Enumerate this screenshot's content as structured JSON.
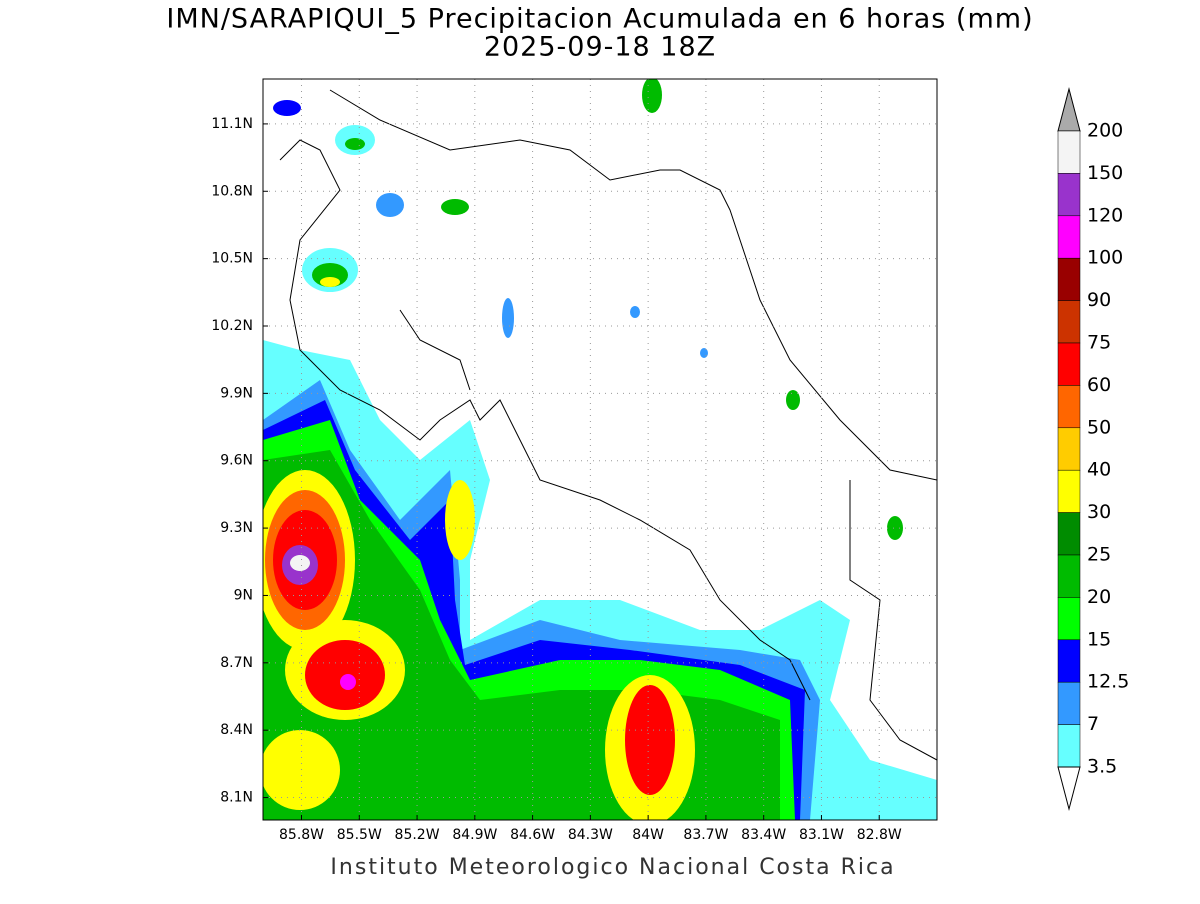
{
  "title": "IMN/SARAPIQUI_5 Precipitacion Acumulada en 6 horas (mm)",
  "subtitle": "2025-09-18 18Z",
  "footer": "Instituto Meteorologico Nacional Costa Rica",
  "map": {
    "lon_range": [
      -86,
      -82.5
    ],
    "lat_range": [
      8,
      11.3
    ],
    "lat_ticks": [
      {
        "value": 11.1,
        "label": "11.1N"
      },
      {
        "value": 10.8,
        "label": "10.8N"
      },
      {
        "value": 10.5,
        "label": "10.5N"
      },
      {
        "value": 10.2,
        "label": "10.2N"
      },
      {
        "value": 9.9,
        "label": "9.9N"
      },
      {
        "value": 9.6,
        "label": "9.6N"
      },
      {
        "value": 9.3,
        "label": "9.3N"
      },
      {
        "value": 9,
        "label": "9N"
      },
      {
        "value": 8.7,
        "label": "8.7N"
      },
      {
        "value": 8.4,
        "label": "8.4N"
      },
      {
        "value": 8.1,
        "label": "8.1N"
      }
    ],
    "lon_ticks": [
      {
        "value": -85.8,
        "label": "85.8W"
      },
      {
        "value": -85.5,
        "label": "85.5W"
      },
      {
        "value": -85.2,
        "label": "85.2W"
      },
      {
        "value": -84.9,
        "label": "84.9W"
      },
      {
        "value": -84.6,
        "label": "84.6W"
      },
      {
        "value": -84.3,
        "label": "84.3W"
      },
      {
        "value": -84,
        "label": "84W"
      },
      {
        "value": -83.7,
        "label": "83.7W"
      },
      {
        "value": -83.4,
        "label": "83.4W"
      },
      {
        "value": -83.1,
        "label": "83.1W"
      },
      {
        "value": -82.8,
        "label": "82.8W"
      }
    ],
    "colorbar": {
      "levels": [
        200,
        150,
        120,
        100,
        90,
        75,
        60,
        50,
        40,
        30,
        25,
        20,
        15,
        12.5,
        7,
        3.5
      ],
      "colors": [
        "#f4f4f4",
        "#9933cc",
        "#ff00ff",
        "#990000",
        "#cc3300",
        "#ff0000",
        "#ff6600",
        "#ffcc00",
        "#ffff00",
        "#008c00",
        "#00bb00",
        "#00ff00",
        "#0000ff",
        "#3399ff",
        "#66ffff"
      ],
      "over_color": "#aaaaaa",
      "under_color": "#ffffff"
    }
  }
}
